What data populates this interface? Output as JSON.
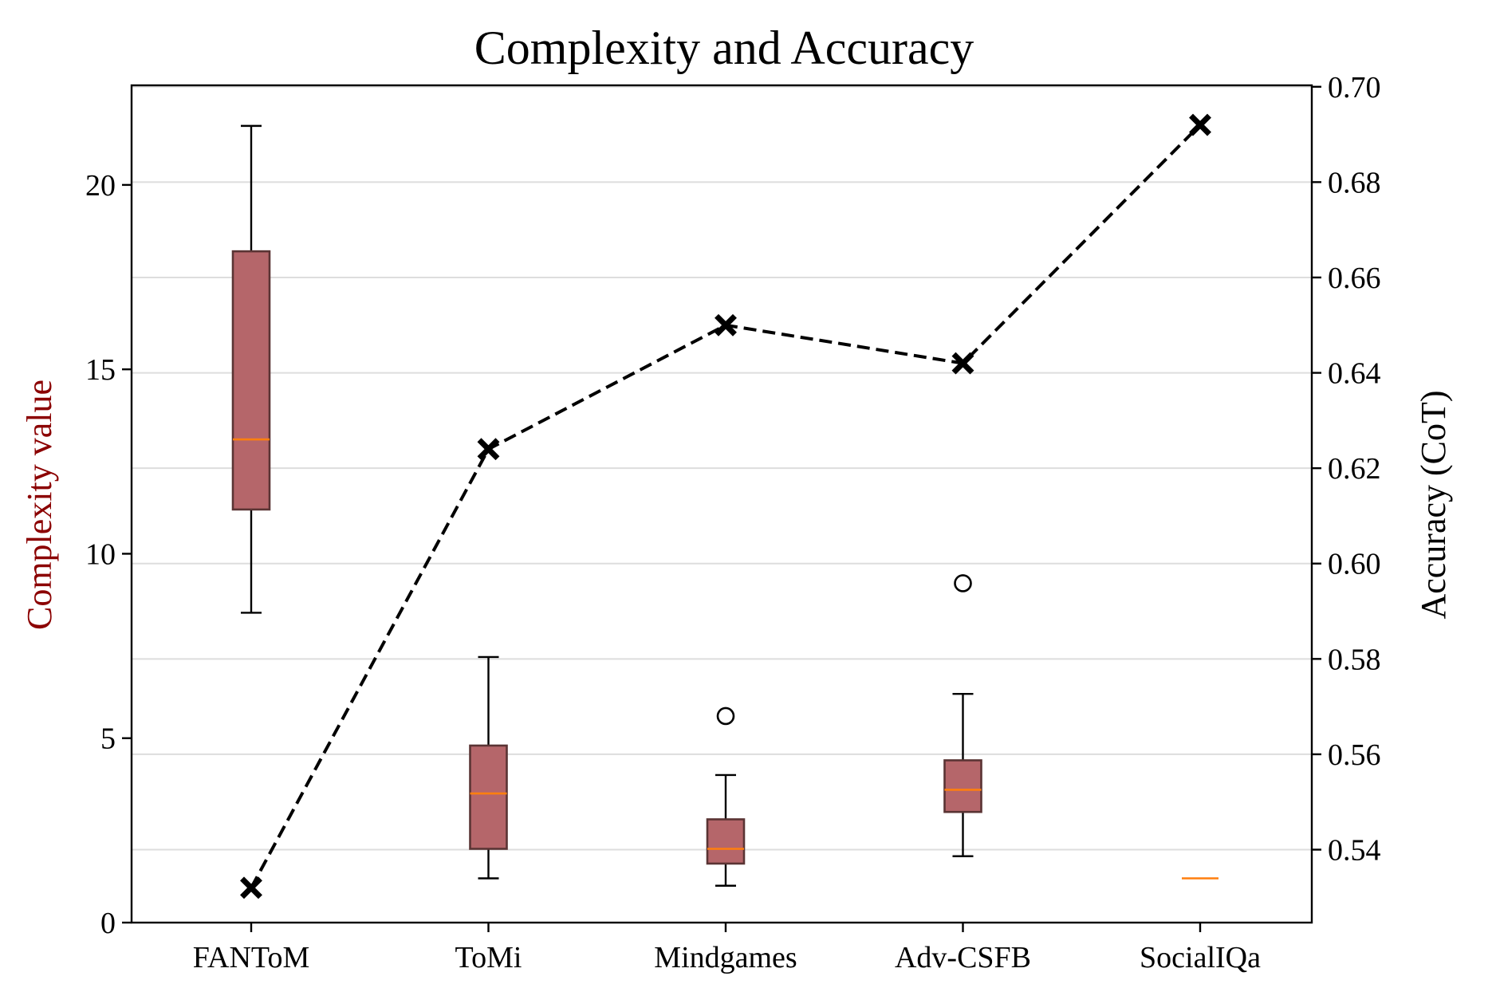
{
  "chart_data": {
    "type": "box",
    "title": "Complexity and Accuracy",
    "xlabel": "",
    "ylabel_left": "Complexity value",
    "ylabel_right": "Accuracy (CoT)",
    "categories": [
      "FANToM",
      "ToMi",
      "Mindgames",
      "Adv-CSFB",
      "SocialIQa"
    ],
    "left_axis": {
      "ylim": [
        0,
        22.7
      ],
      "ticks": [
        0,
        5,
        10,
        15,
        20
      ],
      "tick_labels": [
        "0",
        "5",
        "10",
        "15",
        "20"
      ]
    },
    "right_axis": {
      "ylim": [
        0.5247,
        0.7003
      ],
      "ticks": [
        0.54,
        0.56,
        0.58,
        0.6,
        0.62,
        0.64,
        0.66,
        0.68,
        0.7
      ],
      "tick_labels": [
        "0.54",
        "0.56",
        "0.58",
        "0.60",
        "0.62",
        "0.64",
        "0.66",
        "0.68",
        "0.70"
      ]
    },
    "grid": true,
    "boxes": [
      {
        "category": "FANToM",
        "whisker_low": 8.4,
        "q1": 11.2,
        "median": 13.1,
        "q3": 18.2,
        "whisker_high": 21.6,
        "outliers": []
      },
      {
        "category": "ToMi",
        "whisker_low": 1.2,
        "q1": 2.0,
        "median": 3.5,
        "q3": 4.8,
        "whisker_high": 7.2,
        "outliers": []
      },
      {
        "category": "Mindgames",
        "whisker_low": 1.0,
        "q1": 1.6,
        "median": 2.0,
        "q3": 2.8,
        "whisker_high": 4.0,
        "outliers": [
          5.6
        ]
      },
      {
        "category": "Adv-CSFB",
        "whisker_low": 1.8,
        "q1": 3.0,
        "median": 3.6,
        "q3": 4.4,
        "whisker_high": 6.2,
        "outliers": [
          9.2
        ]
      },
      {
        "category": "SocialIQa",
        "whisker_low": 1.2,
        "q1": 1.2,
        "median": 1.2,
        "q3": 1.2,
        "whisker_high": 1.2,
        "outliers": []
      }
    ],
    "accuracy_series": {
      "values": [
        0.532,
        0.624,
        0.65,
        0.642,
        0.692
      ],
      "style": "dashed",
      "marker": "x"
    },
    "colors": {
      "box_fill": "#b5666a",
      "box_edge": "#5a3434",
      "median": "#ff7f0e",
      "line": "#000000",
      "ylabel_left": "#8b0000",
      "grid": "#dddddd"
    }
  }
}
